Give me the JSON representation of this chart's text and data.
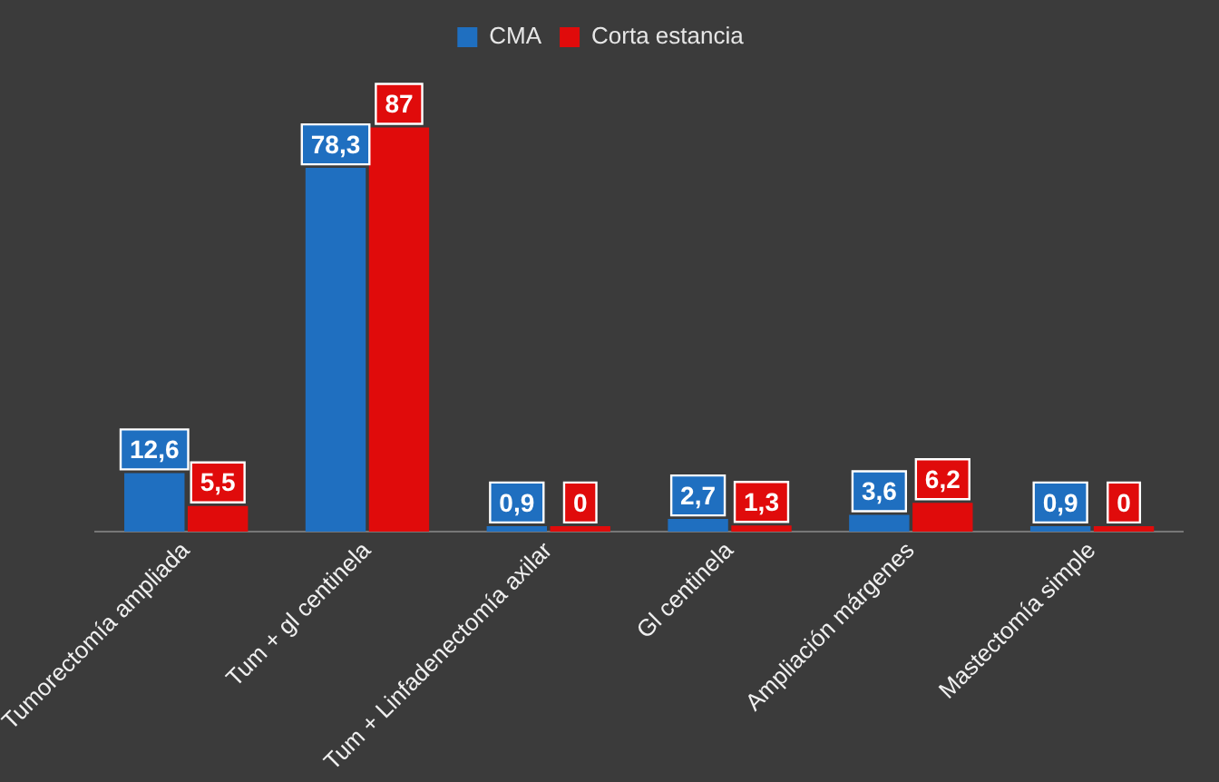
{
  "chart_data": {
    "type": "bar",
    "categories": [
      "Tumorectomía ampliada",
      "Tum + gl centinela",
      "Tum + Linfadenectomía axilar",
      "Gl centinela",
      "Ampliación márgenes",
      "Mastectomía simple"
    ],
    "series": [
      {
        "name": "CMA",
        "color": "#1f6fc0",
        "values": [
          12.6,
          78.3,
          0.9,
          2.7,
          3.6,
          0.9
        ],
        "value_labels": [
          "12,6",
          "78,3",
          "0,9",
          "2,7",
          "3,6",
          "0,9"
        ]
      },
      {
        "name": "Corta estancia",
        "color": "#e00b0b",
        "values": [
          5.5,
          87,
          0,
          1.3,
          6.2,
          0
        ],
        "value_labels": [
          "5,5",
          "87",
          "0",
          "1,3",
          "6,2",
          "0"
        ]
      }
    ],
    "legend": "top",
    "grid": false
  }
}
